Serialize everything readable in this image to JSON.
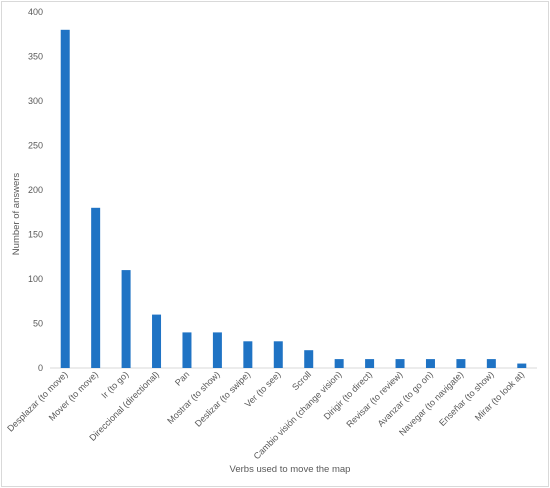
{
  "chart_data": {
    "type": "bar",
    "title": "",
    "xlabel": "Verbs used to move the map",
    "ylabel": "Number of answers",
    "ylim": [
      0,
      400
    ],
    "yticks": [
      0,
      50,
      100,
      150,
      200,
      250,
      300,
      350,
      400
    ],
    "grid": false,
    "legend": "none",
    "bar_color": "#1f73c4",
    "categories": [
      "Desplazar (to move)",
      "Mover (to move)",
      "Ir (to go)",
      "Direccional (directional)",
      "Pan",
      "Mostrar (to show)",
      "Deslizar (to swipe)",
      "Ver (to see)",
      "Scroll",
      "Cambio visión (change vision)",
      "Dirigir (to direct)",
      "Revisar (to review)",
      "Avanzar (to go on)",
      "Navegar (to navigate)",
      "Enseñar (to show)",
      "Mirar (to look at)"
    ],
    "values": [
      380,
      180,
      110,
      60,
      40,
      40,
      30,
      30,
      20,
      10,
      10,
      10,
      10,
      10,
      10,
      5
    ]
  }
}
